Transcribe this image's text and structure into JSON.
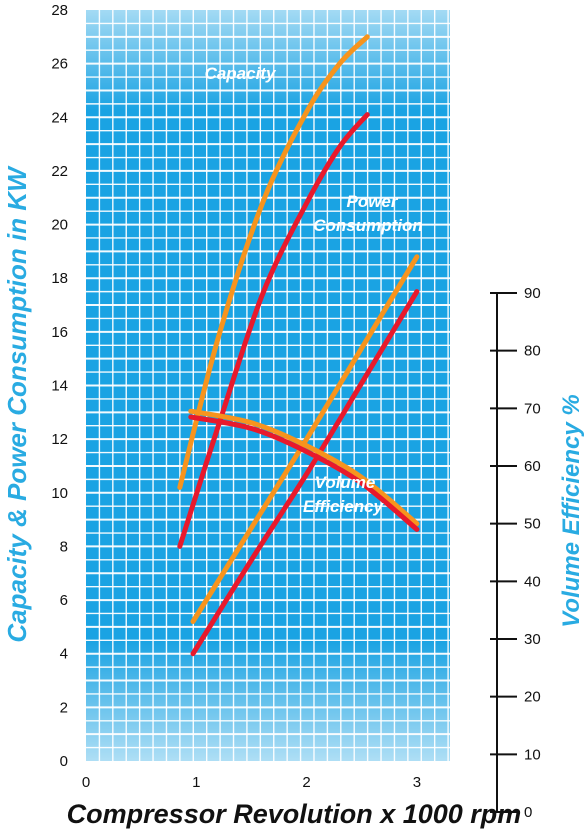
{
  "chart_data": {
    "type": "line",
    "title": "",
    "xlabel": "Compressor Revolution x 1000 rpm",
    "ylabel": "Capacity & Power Consumption in KW",
    "y2label": "Volume Efficiency %",
    "xlim": [
      0,
      3.3
    ],
    "ylim": [
      0,
      28
    ],
    "y2lim": [
      0,
      90
    ],
    "x_ticks": [
      "0",
      "1",
      "2",
      "3"
    ],
    "y_ticks": [
      "0",
      "2",
      "4",
      "6",
      "8",
      "10",
      "12",
      "14",
      "16",
      "18",
      "20",
      "22",
      "24",
      "26",
      "28"
    ],
    "y2_ticks": [
      "0",
      "10",
      "20",
      "30",
      "40",
      "50",
      "60",
      "70",
      "80",
      "90"
    ],
    "grid": true,
    "legend": "none",
    "annotations": {
      "capacity": [
        "Capacity"
      ],
      "power": [
        "Power",
        "Consumption"
      ],
      "volume": [
        "Volume",
        "Efficiency"
      ]
    },
    "colors": {
      "background": "#1aa3e3",
      "grid": "#ffffff",
      "orange": "#f7941d",
      "red": "#e8192c",
      "axis_title": "#29abe2",
      "text": "#111111"
    },
    "series": [
      {
        "axis": "left",
        "color": "orange",
        "x": [
          0.85,
          1.2,
          1.6,
          2.0,
          2.3,
          2.55
        ],
        "y": [
          10.2,
          15.8,
          20.8,
          24.2,
          26.0,
          27.0
        ]
      },
      {
        "axis": "left",
        "color": "red",
        "x": [
          0.85,
          1.2,
          1.6,
          2.0,
          2.3,
          2.55
        ],
        "y": [
          8.0,
          12.5,
          17.4,
          20.8,
          22.9,
          24.1
        ]
      },
      {
        "axis": "left",
        "color": "orange",
        "x": [
          0.97,
          1.5,
          2.0,
          2.5,
          3.0
        ],
        "y": [
          5.2,
          8.7,
          12.0,
          15.4,
          18.8
        ]
      },
      {
        "axis": "left",
        "color": "red",
        "x": [
          0.97,
          1.5,
          2.0,
          2.5,
          3.0
        ],
        "y": [
          4.0,
          7.5,
          10.7,
          14.1,
          17.5
        ]
      },
      {
        "axis": "right",
        "color": "orange",
        "x": [
          0.95,
          1.5,
          2.0,
          2.5,
          3.0
        ],
        "y": [
          69.5,
          67.5,
          63.5,
          58.0,
          50.0
        ]
      },
      {
        "axis": "right",
        "color": "red",
        "x": [
          0.95,
          1.5,
          2.0,
          2.5,
          3.0
        ],
        "y": [
          68.5,
          66.5,
          62.5,
          57.0,
          49.0
        ]
      }
    ]
  }
}
